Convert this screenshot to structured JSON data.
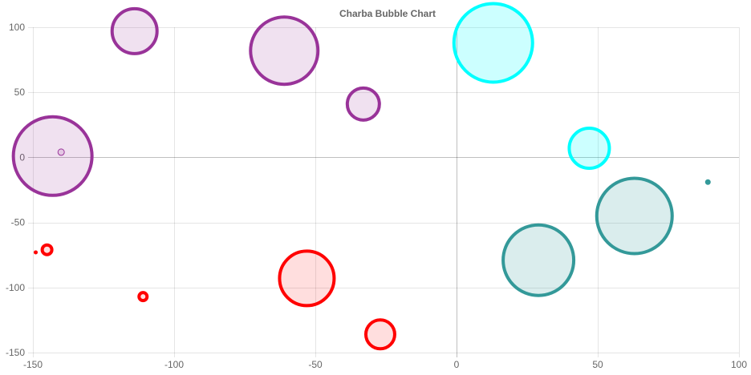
{
  "chart_data": {
    "type": "scatter",
    "title": "Charba Bubble Chart",
    "xlim": [
      -150,
      100
    ],
    "ylim": [
      -150,
      100
    ],
    "x_ticks": [
      -150,
      -100,
      -50,
      0,
      50,
      100
    ],
    "y_ticks": [
      100,
      50,
      0,
      -50,
      -100,
      -150
    ],
    "grid": true,
    "legend": "none",
    "series": [
      {
        "color": "#993399",
        "fill": "rgba(153,51,153,0.15)",
        "points": [
          {
            "x": -114,
            "y": 97,
            "r": 28
          },
          {
            "x": -61,
            "y": 82,
            "r": 42
          },
          {
            "x": -33,
            "y": 41,
            "r": 20
          },
          {
            "x": -143,
            "y": 1,
            "r": 49
          },
          {
            "x": -140,
            "y": 4,
            "r": 4
          }
        ]
      },
      {
        "color": "#00ffff",
        "fill": "rgba(0,255,255,0.2)",
        "points": [
          {
            "x": 13,
            "y": 88,
            "r": 49
          },
          {
            "x": 47,
            "y": 7,
            "r": 25
          }
        ]
      },
      {
        "color": "#339999",
        "fill": "rgba(51,153,153,0.18)",
        "points": [
          {
            "x": 63,
            "y": -45,
            "r": 47
          },
          {
            "x": 29,
            "y": -79,
            "r": 44
          },
          {
            "x": 89,
            "y": -19,
            "r": 3
          }
        ]
      },
      {
        "color": "#ff0000",
        "fill": "rgba(255,0,0,0.13)",
        "points": [
          {
            "x": -53,
            "y": -93,
            "r": 34
          },
          {
            "x": -27,
            "y": -136,
            "r": 18
          },
          {
            "x": -111,
            "y": -107,
            "r": 5
          },
          {
            "x": -145,
            "y": -71,
            "r": 6
          },
          {
            "x": -149,
            "y": -73,
            "r": 2
          }
        ]
      }
    ]
  }
}
